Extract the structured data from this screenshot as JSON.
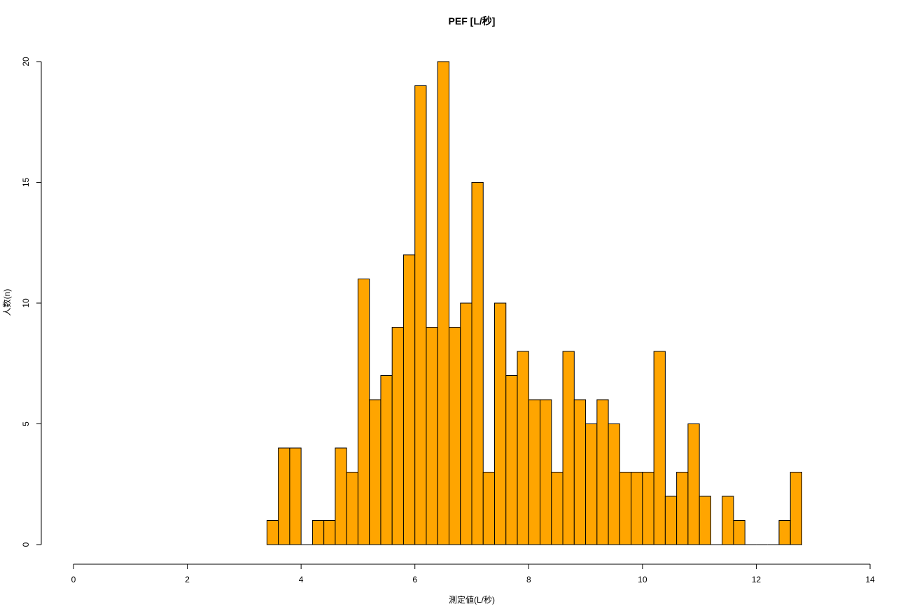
{
  "chart_data": {
    "type": "bar",
    "subtype": "histogram",
    "title": "PEF [L/秒]",
    "xlabel": "測定値(L/秒)",
    "ylabel": "人数(n)",
    "xlim": [
      0,
      14
    ],
    "ylim": [
      0,
      20
    ],
    "x_ticks": [
      0,
      2,
      4,
      6,
      8,
      10,
      12,
      14
    ],
    "y_ticks": [
      0,
      5,
      10,
      15,
      20
    ],
    "bin_width": 0.2,
    "bins_start": [
      3.4,
      3.6,
      3.8,
      4.0,
      4.2,
      4.4,
      4.6,
      4.8,
      5.0,
      5.2,
      5.4,
      5.6,
      5.8,
      6.0,
      6.2,
      6.4,
      6.6,
      6.8,
      7.0,
      7.2,
      7.4,
      7.6,
      7.8,
      8.0,
      8.2,
      8.4,
      8.6,
      8.8,
      9.0,
      9.2,
      9.4,
      9.6,
      9.8,
      10.0,
      10.2,
      10.4,
      10.6,
      10.8,
      11.0,
      11.2,
      11.4,
      11.6,
      11.8,
      12.0,
      12.2,
      12.4,
      12.6
    ],
    "values": [
      1,
      4,
      4,
      0,
      1,
      1,
      4,
      3,
      11,
      6,
      7,
      9,
      12,
      19,
      9,
      20,
      9,
      10,
      15,
      3,
      10,
      7,
      8,
      6,
      6,
      3,
      8,
      6,
      5,
      6,
      5,
      3,
      3,
      3,
      8,
      2,
      3,
      5,
      2,
      0,
      2,
      1,
      0,
      0,
      0,
      1,
      3
    ],
    "bar_color": "#FFA500",
    "grid": false,
    "legend": "none"
  }
}
